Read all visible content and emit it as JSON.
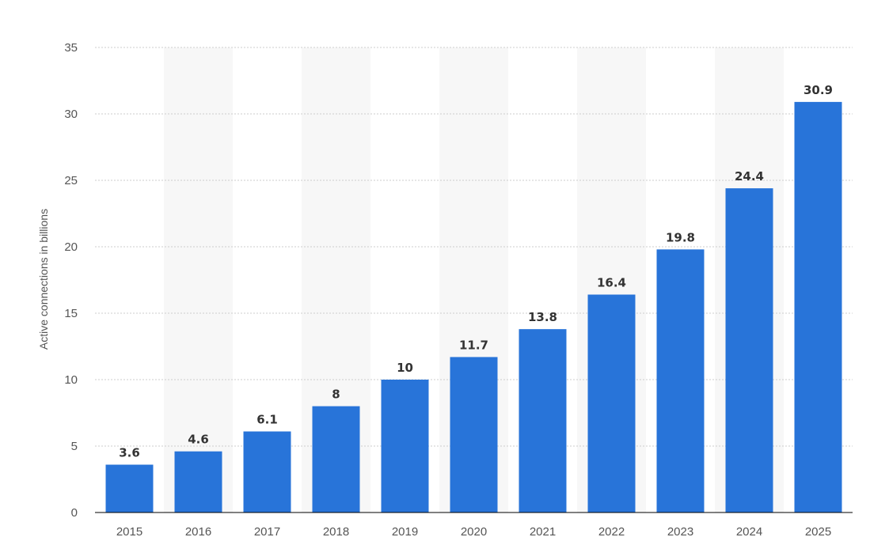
{
  "chart_data": {
    "type": "bar",
    "title": "",
    "xlabel": "",
    "ylabel": "Active connections in billions",
    "categories": [
      "2015",
      "2016",
      "2017",
      "2018",
      "2019",
      "2020",
      "2021",
      "2022",
      "2023",
      "2024",
      "2025"
    ],
    "values": [
      3.6,
      4.6,
      6.1,
      8,
      10,
      11.7,
      13.8,
      16.4,
      19.8,
      24.4,
      30.9
    ],
    "value_labels": [
      "3.6",
      "4.6",
      "6.1",
      "8",
      "10",
      "11.7",
      "13.8",
      "16.4",
      "19.8",
      "24.4",
      "30.9"
    ],
    "ylim": [
      0,
      35
    ],
    "yticks": [
      0,
      5,
      10,
      15,
      20,
      25,
      30,
      35
    ],
    "grid": true,
    "legend": "none",
    "colors": {
      "bar": "#2874d9",
      "alternate_band": "#f7f7f7",
      "gridline": "#cccccc",
      "baseline": "#000000"
    }
  }
}
